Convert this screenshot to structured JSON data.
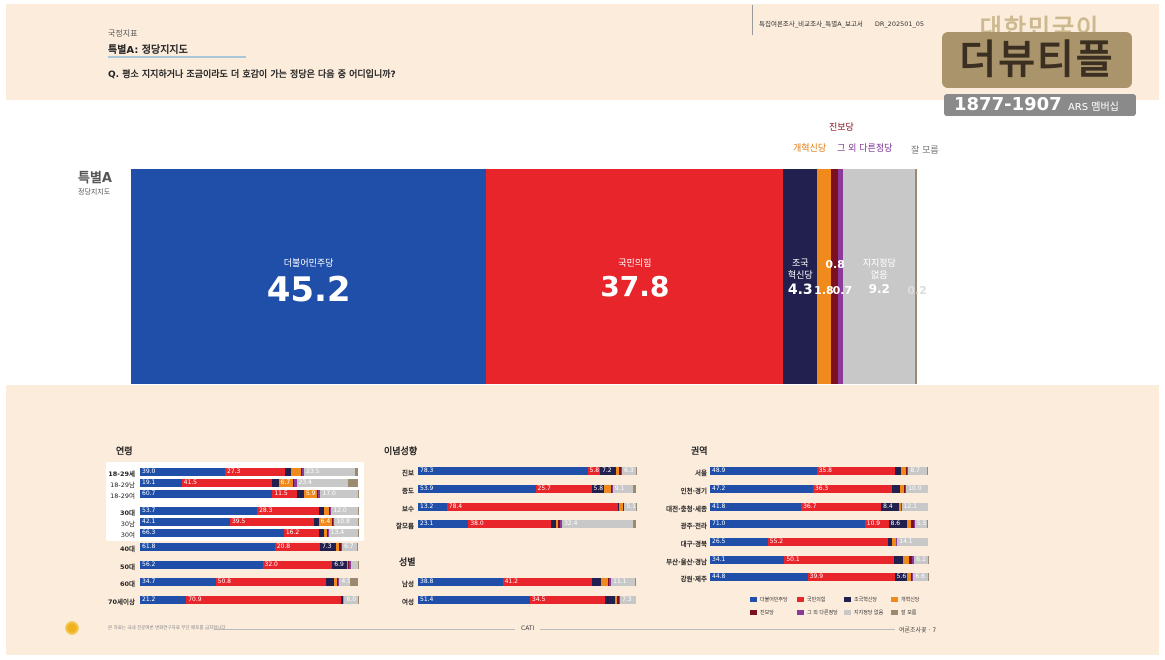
{
  "header": {
    "category": "국정지표",
    "title": "특별A: 정당지지도",
    "question": "Q. 평소 지지하거나 조금이라도 더 호감이 가는 정당은 다음 중 어디입니까?",
    "doc_name": "특집여론조사_비교조사_특별A_보고서",
    "doc_code": "DR_202501_05"
  },
  "logo": {
    "line1": "대한민국이",
    "line2": "더뷰티플",
    "number": "1877-1907",
    "suffix": "ARS 멤버십"
  },
  "side": {
    "big": "특별A",
    "small": "정당지지도"
  },
  "footer": {
    "note": "본 자료는 국내 전문여론 변화연구자료 무단 배포를 금지합니다",
    "method": "CATI",
    "source": "여론조사꽃",
    "page": "7"
  },
  "colors": {
    "dem": "#1f4fa8",
    "ppp": "#e8252b",
    "rebuild": "#22204f",
    "reform": "#f08a1c",
    "progressive": "#7a1020",
    "other": "#8a3a9a",
    "none": "#c8c8c8",
    "dk": "#9b8a70"
  },
  "chart_data": [
    {
      "type": "bar",
      "stacked": true,
      "orientation": "horizontal",
      "title": "특별A",
      "subtitle": "정당지지도",
      "segments": [
        {
          "name": "더불어민주당",
          "value": 45.2,
          "color": "#1f4fa8"
        },
        {
          "name": "국민의힘",
          "value": 37.8,
          "color": "#e8252b"
        },
        {
          "name": "조국혁신당",
          "value": 4.3,
          "color": "#22204f"
        },
        {
          "name": "개혁신당",
          "value": 1.8,
          "color": "#f08a1c"
        },
        {
          "name": "진보당",
          "value": 0.8,
          "color": "#7a1020"
        },
        {
          "name": "그 외 다른정당",
          "value": 0.7,
          "color": "#8a3a9a"
        },
        {
          "name": "지지정당 없음",
          "value": 9.2,
          "color": "#c8c8c8"
        },
        {
          "name": "잘 모름",
          "value": 0.2,
          "color": "#9b8a70"
        }
      ],
      "labels": {
        "dem": "더불어민주당",
        "ppp": "국민의힘",
        "rebuild_1": "조국",
        "rebuild_2": "혁신당",
        "none_1": "지지정당",
        "none_2": "없음",
        "reform_top": "개혁신당",
        "progressive_top": "진보당",
        "other_top": "그 외 다른정당",
        "dk_top": "잘 모름",
        "v_dem": "45.2",
        "v_ppp": "37.8",
        "v_rebuild": "4.3",
        "v_reform": "1.8",
        "v_progressive": "0.8",
        "v_other": "0.7",
        "v_none": "9.2",
        "v_dk": "0.2"
      }
    },
    {
      "type": "bar",
      "stacked": true,
      "title": "연령",
      "series_names": [
        "더불어민주당",
        "국민의힘",
        "조국혁신당",
        "개혁신당",
        "진보당",
        "그 외 다른정당",
        "지지정당 없음",
        "잘 모름"
      ],
      "rows": [
        {
          "label": "18-29세",
          "bold": true,
          "values": [
            39.0,
            27.3,
            3.0,
            4.5,
            0.5,
            1.0,
            23.5,
            1.2
          ],
          "shown": [
            "39.0",
            "27.3",
            "",
            "",
            "",
            "",
            "23.5",
            ""
          ]
        },
        {
          "label": "18-29남",
          "bold": false,
          "values": [
            19.1,
            41.5,
            3.0,
            6.7,
            0.5,
            1.0,
            23.4,
            4.8
          ],
          "shown": [
            "19.1",
            "41.5",
            "",
            "6.7",
            "",
            "",
            "23.4",
            ""
          ]
        },
        {
          "label": "18-29여",
          "bold": false,
          "values": [
            60.7,
            11.5,
            3.0,
            5.9,
            0.5,
            1.2,
            17.0,
            0.2
          ],
          "shown": [
            "60.7",
            "11.5",
            "",
            "5.9",
            "",
            "",
            "17.0",
            ""
          ]
        },
        {
          "label": "30대",
          "bold": true,
          "values": [
            53.7,
            28.3,
            2.5,
            2.0,
            0.5,
            0.8,
            12.0,
            0.2
          ],
          "shown": [
            "53.7",
            "28.3",
            "",
            "",
            "",
            "",
            "12.0",
            ""
          ]
        },
        {
          "label": "30남",
          "bold": false,
          "values": [
            42.1,
            39.5,
            2.0,
            6.4,
            0.5,
            0.5,
            10.8,
            0.2
          ],
          "shown": [
            "42.1",
            "39.5",
            "",
            "6.4",
            "",
            "",
            "10.8",
            ""
          ]
        },
        {
          "label": "30여",
          "bold": false,
          "values": [
            66.3,
            16.2,
            2.5,
            1.0,
            0.5,
            0.5,
            13.4,
            0.1
          ],
          "shown": [
            "66.3",
            "16.2",
            "",
            "",
            "",
            "",
            "13.4",
            ""
          ]
        },
        {
          "label": "40대",
          "bold": true,
          "values": [
            61.8,
            20.8,
            7.3,
            1.5,
            0.8,
            0.5,
            6.7,
            0.6
          ],
          "shown": [
            "61.8",
            "20.8",
            "7.3",
            "",
            "",
            "",
            "6.7",
            ""
          ]
        },
        {
          "label": "50대",
          "bold": true,
          "values": [
            56.2,
            32.0,
            6.9,
            0.5,
            0.5,
            0.5,
            3.2,
            0.2
          ],
          "shown": [
            "56.2",
            "32.0",
            "6.9",
            "",
            "",
            "",
            "",
            ""
          ]
        },
        {
          "label": "60대",
          "bold": true,
          "values": [
            34.7,
            50.8,
            3.5,
            1.5,
            0.5,
            0.5,
            4.9,
            3.6
          ],
          "shown": [
            "34.7",
            "50.8",
            "",
            "",
            "",
            "",
            "4.9",
            ""
          ]
        },
        {
          "label": "70세이상",
          "bold": true,
          "values": [
            21.2,
            70.9,
            1.0,
            0.3,
            0.2,
            0.2,
            6.0,
            0.2
          ],
          "shown": [
            "21.2",
            "70.9",
            "",
            "",
            "",
            "",
            "6.0",
            ""
          ]
        }
      ]
    },
    {
      "type": "bar",
      "stacked": true,
      "title": "이념성향",
      "series_names": [
        "더불어민주당",
        "국민의힘",
        "조국혁신당",
        "개혁신당",
        "진보당",
        "그 외 다른정당",
        "지지정당 없음",
        "잘 모름"
      ],
      "rows": [
        {
          "label": "진보",
          "bold": true,
          "values": [
            78.3,
            5.8,
            7.2,
            1.5,
            1.0,
            0.5,
            6.3,
            0.1
          ],
          "shown": [
            "78.3",
            "5.8",
            "7.2",
            "",
            "",
            "",
            "6.3",
            ""
          ]
        },
        {
          "label": "중도",
          "bold": true,
          "values": [
            53.9,
            25.7,
            5.8,
            3.0,
            0.5,
            0.5,
            9.1,
            1.5
          ],
          "shown": [
            "53.9",
            "25.7",
            "5.8",
            "",
            "",
            "",
            "9.1",
            ""
          ]
        },
        {
          "label": "보수",
          "bold": true,
          "values": [
            13.2,
            78.4,
            0.5,
            2.0,
            0.3,
            0.3,
            5.1,
            0.2
          ],
          "shown": [
            "13.2",
            "78.4",
            "",
            "",
            "",
            "",
            "5.1",
            ""
          ]
        },
        {
          "label": "잘모름",
          "bold": true,
          "values": [
            23.1,
            38.0,
            2.0,
            1.0,
            1.0,
            1.0,
            32.4,
            1.5
          ],
          "shown": [
            "23.1",
            "38.0",
            "",
            "",
            "",
            "",
            "32.4",
            ""
          ]
        }
      ]
    },
    {
      "type": "bar",
      "stacked": true,
      "title": "성별",
      "series_names": [
        "더불어민주당",
        "국민의힘",
        "조국혁신당",
        "개혁신당",
        "진보당",
        "그 외 다른정당",
        "지지정당 없음",
        "잘 모름"
      ],
      "rows": [
        {
          "label": "남성",
          "bold": true,
          "values": [
            38.8,
            41.2,
            4.0,
            3.0,
            0.8,
            0.8,
            11.1,
            0.3
          ],
          "shown": [
            "38.8",
            "41.2",
            "",
            "",
            "",
            "",
            "11.1",
            ""
          ]
        },
        {
          "label": "여성",
          "bold": true,
          "values": [
            51.4,
            34.5,
            4.5,
            1.0,
            0.8,
            0.5,
            7.3,
            0.0
          ],
          "shown": [
            "51.4",
            "34.5",
            "",
            "",
            "",
            "",
            "7.3",
            ""
          ]
        }
      ]
    },
    {
      "type": "bar",
      "stacked": true,
      "title": "권역",
      "series_names": [
        "더불어민주당",
        "국민의힘",
        "조국혁신당",
        "개혁신당",
        "진보당",
        "그 외 다른정당",
        "지지정당 없음",
        "잘 모름"
      ],
      "rows": [
        {
          "label": "서울",
          "bold": true,
          "values": [
            48.9,
            35.8,
            3.0,
            2.0,
            0.8,
            0.5,
            8.7,
            0.3
          ],
          "shown": [
            "48.9",
            "35.8",
            "",
            "",
            "",
            "",
            "8.7",
            ""
          ]
        },
        {
          "label": "인천·경기",
          "bold": true,
          "values": [
            47.2,
            36.3,
            3.5,
            2.0,
            0.5,
            0.5,
            10.0,
            0.0
          ],
          "shown": [
            "47.2",
            "36.3",
            "",
            "",
            "",
            "",
            "10.0",
            ""
          ]
        },
        {
          "label": "대전·충청·세종",
          "bold": true,
          "values": [
            41.8,
            36.7,
            8.4,
            0.5,
            0.3,
            0.2,
            12.1,
            0.0
          ],
          "shown": [
            "41.8",
            "36.7",
            "8.4",
            "",
            "",
            "",
            "12.1",
            ""
          ]
        },
        {
          "label": "광주·전라",
          "bold": true,
          "values": [
            71.0,
            10.9,
            8.6,
            1.5,
            1.5,
            0.5,
            5.5,
            0.5
          ],
          "shown": [
            "71.0",
            "10.9",
            "8.6",
            "",
            "",
            "",
            "5.5",
            ""
          ]
        },
        {
          "label": "대구·경북",
          "bold": true,
          "values": [
            26.5,
            55.2,
            2.0,
            1.5,
            0.3,
            0.4,
            14.1,
            0.0
          ],
          "shown": [
            "26.5",
            "55.2",
            "",
            "",
            "",
            "",
            "14.1",
            ""
          ]
        },
        {
          "label": "부산·울산·경남",
          "bold": true,
          "values": [
            34.1,
            50.1,
            4.5,
            2.5,
            1.5,
            1.0,
            6.1,
            0.2
          ],
          "shown": [
            "34.1",
            "50.1",
            "",
            "",
            "",
            "",
            "6.1",
            ""
          ]
        },
        {
          "label": "강원·제주",
          "bold": true,
          "values": [
            44.8,
            39.9,
            5.6,
            2.0,
            0.5,
            0.5,
            6.6,
            0.1
          ],
          "shown": [
            "44.8",
            "39.9",
            "5.6",
            "",
            "",
            "",
            "6.6",
            ""
          ]
        }
      ]
    }
  ],
  "legend": [
    {
      "label": "더불어민주당",
      "color": "#1f4fa8"
    },
    {
      "label": "국민의힘",
      "color": "#e8252b"
    },
    {
      "label": "조국혁신당",
      "color": "#22204f"
    },
    {
      "label": "개혁신당",
      "color": "#f08a1c"
    },
    {
      "label": "진보당",
      "color": "#7a1020"
    },
    {
      "label": "그 외 다른정당",
      "color": "#8a3a9a"
    },
    {
      "label": "지지정당 없음",
      "color": "#c8c8c8"
    },
    {
      "label": "잘 모름",
      "color": "#9b8a70"
    }
  ]
}
